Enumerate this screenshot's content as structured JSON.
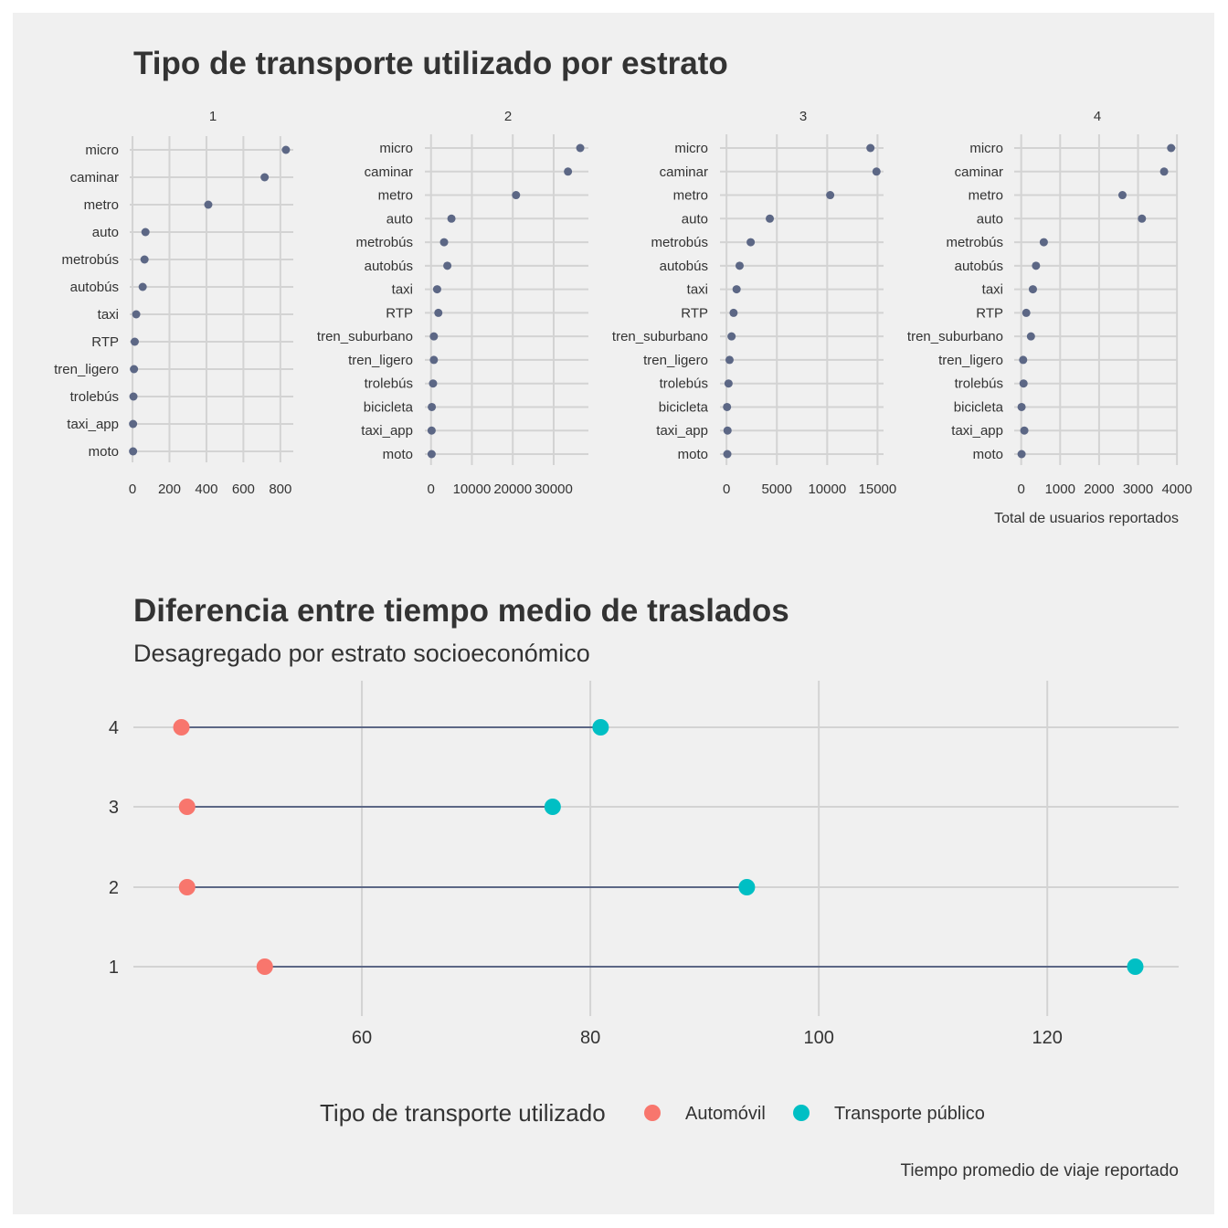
{
  "chart_data": [
    {
      "type": "scatter",
      "title": "Tipo de transporte utilizado por estrato",
      "caption": "Total de usuarios reportados",
      "categories": [
        "micro",
        "caminar",
        "metro",
        "auto",
        "metrobús",
        "autobús",
        "taxi",
        "RTP",
        "tren_suburbano",
        "tren_ligero",
        "trolebús",
        "bicicleta",
        "taxi_app",
        "moto"
      ],
      "facets": [
        {
          "name": "1",
          "categories": [
            "micro",
            "caminar",
            "metro",
            "auto",
            "metrobús",
            "autobús",
            "taxi",
            "RTP",
            "tren_ligero",
            "trolebús",
            "taxi_app",
            "moto"
          ],
          "values": [
            830,
            715,
            410,
            70,
            65,
            55,
            20,
            12,
            8,
            5,
            3,
            3
          ],
          "xlim": [
            -15,
            870
          ],
          "xticks": [
            0,
            200,
            400,
            600,
            800
          ],
          "xtick_labels": [
            "0",
            "200",
            "400",
            "600",
            "800"
          ]
        },
        {
          "name": "2",
          "categories": [
            "micro",
            "caminar",
            "metro",
            "auto",
            "metrobús",
            "autobús",
            "taxi",
            "RTP",
            "tren_suburbano",
            "tren_ligero",
            "trolebús",
            "bicicleta",
            "taxi_app",
            "moto"
          ],
          "values": [
            36500,
            33500,
            20800,
            5000,
            3200,
            4000,
            1500,
            1800,
            700,
            700,
            500,
            200,
            150,
            150
          ],
          "xlim": [
            -1500,
            38500
          ],
          "xticks": [
            0,
            10000,
            20000,
            30000
          ],
          "xtick_labels": [
            "0",
            "10000",
            "20000",
            "30000"
          ]
        },
        {
          "name": "3",
          "categories": [
            "micro",
            "caminar",
            "metro",
            "auto",
            "metrobús",
            "autobús",
            "taxi",
            "RTP",
            "tren_suburbano",
            "tren_ligero",
            "trolebús",
            "bicicleta",
            "taxi_app",
            "moto"
          ],
          "values": [
            14300,
            14900,
            10300,
            4300,
            2400,
            1300,
            1000,
            700,
            500,
            300,
            200,
            50,
            100,
            80
          ],
          "xlim": [
            -650,
            15600
          ],
          "xticks": [
            0,
            5000,
            10000,
            15000
          ],
          "xtick_labels": [
            "0",
            "5000",
            "10000",
            "15000"
          ]
        },
        {
          "name": "4",
          "categories": [
            "micro",
            "caminar",
            "metro",
            "auto",
            "metrobús",
            "autobús",
            "taxi",
            "RTP",
            "tren_suburbano",
            "tren_ligero",
            "trolebús",
            "bicicleta",
            "taxi_app",
            "moto"
          ],
          "values": [
            3850,
            3670,
            2600,
            3100,
            580,
            380,
            300,
            130,
            250,
            50,
            60,
            10,
            80,
            10
          ],
          "xlim": [
            -180,
            4020
          ],
          "xticks": [
            0,
            1000,
            2000,
            3000,
            4000
          ],
          "xtick_labels": [
            "0",
            "1000",
            "2000",
            "3000",
            "4000"
          ]
        }
      ],
      "point_color": "#5c6785",
      "grid": true
    },
    {
      "type": "dumbbell",
      "title": "Diferencia entre tiempo medio de traslados",
      "subtitle": "Desagregado por estrato socioeconómico",
      "caption": "Tiempo promedio de viaje reportado",
      "categories": [
        "1",
        "2",
        "3",
        "4"
      ],
      "series": [
        {
          "name": "Automóvil",
          "color": "#f8766d",
          "values": [
            51.5,
            44.7,
            44.7,
            44.2
          ]
        },
        {
          "name": "Transporte público",
          "color": "#00bfc4",
          "values": [
            127.7,
            93.7,
            76.7,
            80.9
          ]
        }
      ],
      "xlim": [
        40,
        131.5
      ],
      "xticks": [
        60,
        80,
        100,
        120
      ],
      "xtick_labels": [
        "60",
        "80",
        "100",
        "120"
      ],
      "segment_color": "#5c6785",
      "legend": {
        "title": "Tipo de transporte utilizado",
        "position": "bottom"
      },
      "grid": true
    }
  ]
}
